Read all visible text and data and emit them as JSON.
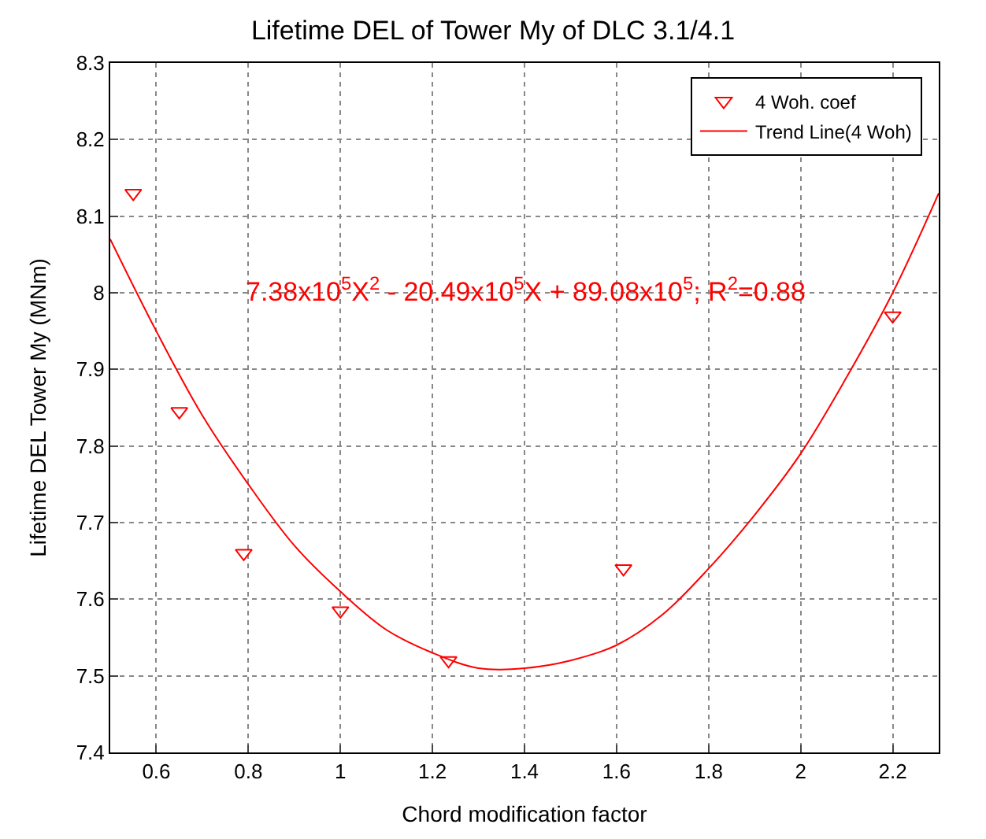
{
  "chart_data": {
    "type": "scatter",
    "title": "Lifetime DEL of Tower My of DLC 3.1/4.1",
    "xlabel": "Chord modification factor",
    "ylabel": "Lifetime DEL Tower My (MNm)",
    "xlim": [
      0.5,
      2.3
    ],
    "xticks": [
      0.6,
      0.8,
      1,
      1.2,
      1.4,
      1.6,
      1.8,
      2,
      2.2
    ],
    "ylim": [
      7.4,
      8.3
    ],
    "yticks": [
      7.4,
      7.5,
      7.6,
      7.7,
      7.8,
      7.9,
      8,
      8.1,
      8.2,
      8.3
    ],
    "grid": true,
    "legend": "top right",
    "annotations": [
      "7.38x10$^{5}$X$^{2}$ - 20.49x10$^{5}$X + 89.08x10$^{5}$; R$^{2}$=0.88"
    ],
    "series": [
      {
        "name": "4 Woh. coef",
        "marker": "triangle",
        "color": "#ff0000",
        "x": [
          0.55,
          0.65,
          0.79,
          1.0,
          1.235,
          1.615,
          2.2
        ],
        "values": [
          8.13,
          7.845,
          7.66,
          7.585,
          7.52,
          7.64,
          7.97
        ]
      },
      {
        "name": "Trend Line(4 Woh)",
        "type": "line",
        "marker": "none",
        "line_style": "solid",
        "color": "#ff0000",
        "x": [
          0.5,
          0.6,
          0.7,
          0.8,
          0.9,
          1.0,
          1.1,
          1.2,
          1.3,
          1.4,
          1.5,
          1.6,
          1.7,
          1.8,
          1.9,
          2.0,
          2.1,
          2.2,
          2.3
        ],
        "values": [
          8.07,
          7.95,
          7.84,
          7.75,
          7.67,
          7.61,
          7.56,
          7.53,
          7.51,
          7.51,
          7.52,
          7.54,
          7.58,
          7.64,
          7.71,
          7.79,
          7.89,
          8.0,
          8.13
        ]
      }
    ]
  }
}
